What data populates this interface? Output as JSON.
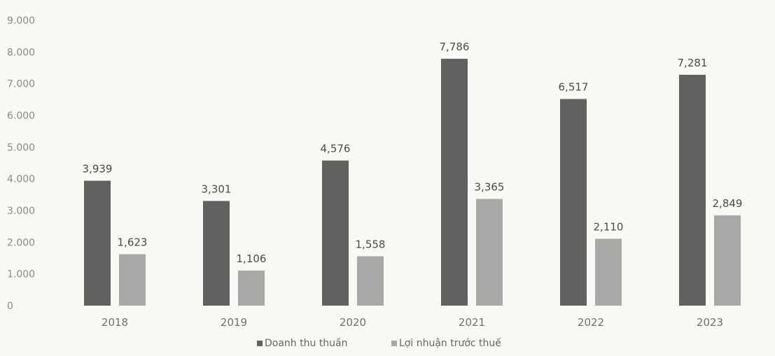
{
  "chart_data": {
    "type": "bar",
    "categories": [
      "2018",
      "2019",
      "2020",
      "2021",
      "2022",
      "2023"
    ],
    "series": [
      {
        "name": "Doanh thu thuần",
        "color": "#616161",
        "values": [
          3939,
          3301,
          4576,
          7786,
          6517,
          7281
        ],
        "labels": [
          "3,939",
          "3,301",
          "4,576",
          "7,786",
          "6,517",
          "7,281"
        ]
      },
      {
        "name": "Lợi nhuận trước thuế",
        "color": "#a8a8a8",
        "values": [
          1623,
          1106,
          1558,
          3365,
          2110,
          2849
        ],
        "labels": [
          "1,623",
          "1,106",
          "1,558",
          "3,365",
          "2,110",
          "2,849"
        ]
      }
    ],
    "ylim": [
      0,
      9000
    ],
    "yticks": [
      {
        "value": 0,
        "label": "0"
      },
      {
        "value": 1000,
        "label": "1.000"
      },
      {
        "value": 2000,
        "label": "2.000"
      },
      {
        "value": 3000,
        "label": "3.000"
      },
      {
        "value": 4000,
        "label": "4.000"
      },
      {
        "value": 5000,
        "label": "5.000"
      },
      {
        "value": 6000,
        "label": "6.000"
      },
      {
        "value": 7000,
        "label": "7.000"
      },
      {
        "value": 8000,
        "label": "8.000"
      },
      {
        "value": 9000,
        "label": "9.000"
      }
    ],
    "grid": false,
    "legend_position": "bottom-center"
  }
}
